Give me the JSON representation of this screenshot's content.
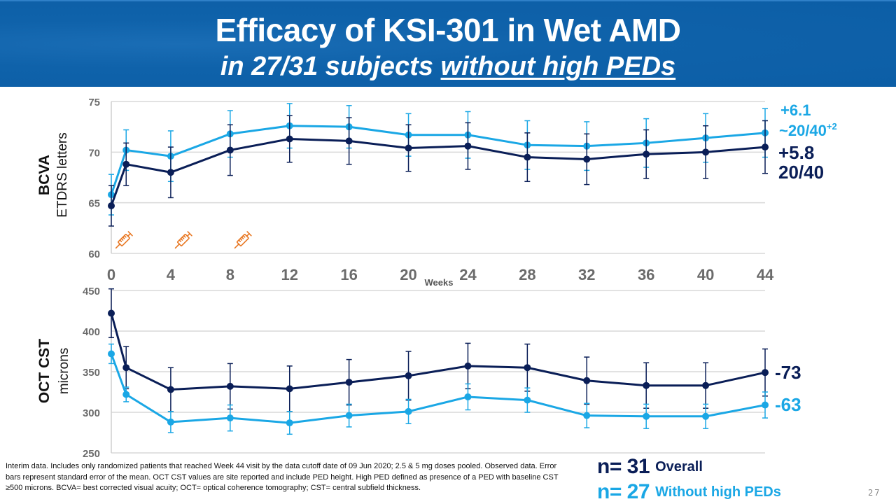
{
  "header": {
    "title": "Efficacy of KSI-301 in Wet AMD",
    "subtitle_prefix": "in 27/31 subjects ",
    "subtitle_emph": "without high PEDs"
  },
  "colors": {
    "overall": "#0a1e57",
    "without_high_peds": "#1aa7e5",
    "injection": "#e87722",
    "banner": "#0c5ea6"
  },
  "chart_data": [
    {
      "type": "line",
      "title": "BCVA",
      "ylabel": "BCVA",
      "ylabel_sub": "ETDRS letters",
      "xlabel": "Weeks",
      "ylim": [
        60,
        75
      ],
      "yticks": [
        60,
        65,
        70,
        75
      ],
      "xticks": [
        0,
        4,
        8,
        12,
        16,
        20,
        24,
        28,
        32,
        36,
        40,
        44
      ],
      "grid": true,
      "x": [
        0,
        1,
        4,
        8,
        12,
        16,
        20,
        24,
        28,
        32,
        36,
        40,
        44
      ],
      "series": [
        {
          "name": "Without high PEDs (n=27)",
          "color_key": "without_high_peds",
          "values": [
            65.8,
            70.2,
            69.6,
            71.8,
            72.6,
            72.5,
            71.7,
            71.7,
            70.7,
            70.6,
            70.9,
            71.4,
            71.9
          ],
          "err": [
            2.0,
            2.0,
            2.5,
            2.3,
            2.2,
            2.1,
            2.1,
            2.3,
            2.4,
            2.4,
            2.4,
            2.4,
            2.4
          ],
          "end_labels": [
            "+6.1",
            "~20/40",
            "+2"
          ]
        },
        {
          "name": "Overall (n=31)",
          "color_key": "overall",
          "values": [
            64.7,
            68.8,
            68.0,
            70.2,
            71.3,
            71.1,
            70.4,
            70.6,
            69.5,
            69.3,
            69.8,
            70.0,
            70.5
          ],
          "err": [
            2.0,
            2.1,
            2.5,
            2.5,
            2.3,
            2.3,
            2.3,
            2.3,
            2.4,
            2.5,
            2.4,
            2.6,
            2.6
          ],
          "end_labels": [
            "+5.8",
            "20/40"
          ]
        }
      ],
      "annotations": {
        "injection_weeks": [
          0,
          4,
          8
        ],
        "injection_icon": "syringe-icon"
      }
    },
    {
      "type": "line",
      "title": "OCT CST",
      "ylabel": "OCT CST",
      "ylabel_sub": "microns",
      "xlabel": "Weeks",
      "ylim": [
        250,
        450
      ],
      "yticks": [
        250,
        300,
        350,
        400,
        450
      ],
      "grid": true,
      "x": [
        0,
        1,
        4,
        8,
        12,
        16,
        20,
        24,
        28,
        32,
        36,
        40,
        44
      ],
      "series": [
        {
          "name": "Overall (n=31)",
          "color_key": "overall",
          "values": [
            422,
            355,
            328,
            332,
            329,
            337,
            345,
            357,
            355,
            339,
            333,
            333,
            349
          ],
          "err": [
            30,
            26,
            27,
            28,
            28,
            28,
            30,
            28,
            29,
            29,
            28,
            28,
            29
          ],
          "end_labels": [
            "-73"
          ]
        },
        {
          "name": "Without high PEDs (n=27)",
          "color_key": "without_high_peds",
          "values": [
            372,
            322,
            288,
            293,
            287,
            296,
            301,
            319,
            315,
            296,
            295,
            295,
            309
          ],
          "err": [
            12,
            9,
            13,
            16,
            14,
            14,
            15,
            16,
            15,
            15,
            15,
            15,
            16
          ],
          "end_labels": [
            "-63"
          ]
        }
      ]
    }
  ],
  "legend": {
    "overall_n": "n= 31",
    "overall_label": "Overall",
    "without_n": "n= 27",
    "without_label": "Without high PEDs"
  },
  "footnote": "Interim data. Includes only randomized patients that reached Week 44 visit by the data cutoff date of 09 Jun 2020; 2.5 & 5 mg doses pooled. Observed data. Error bars represent standard error of the mean. OCT CST values are site reported and include PED height. High PED defined as presence of a PED with baseline CST ≥500 microns. BCVA= best corrected visual acuity; OCT= optical coherence tomography; CST= central subfield thickness.",
  "page_number": "27"
}
